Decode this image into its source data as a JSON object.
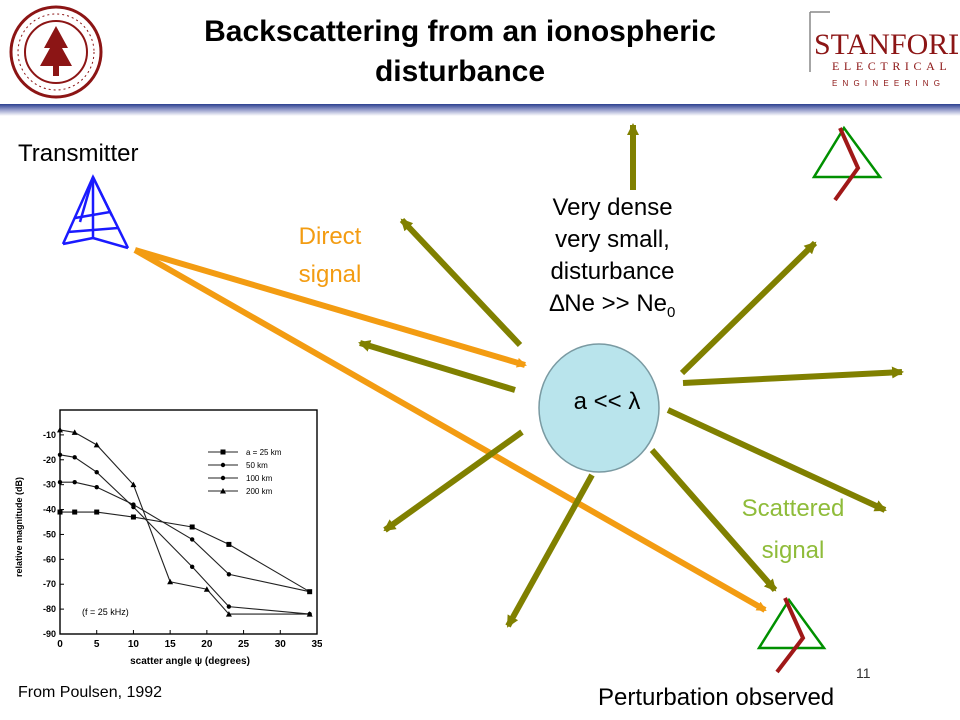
{
  "slide": {
    "title_line1": "Backscattering from an ionospheric",
    "title_line2": "disturbance",
    "page_number": "11"
  },
  "logos": {
    "seal_text": "LELAND STANFORD JUNIOR UNIVERSITY · ORGANIZED 1891",
    "wordmark_main": "STANFORD",
    "wordmark_sub1": "ELECTRICAL",
    "wordmark_sub2": "ENGINEERING"
  },
  "labels": {
    "transmitter": "Transmitter",
    "direct_signal_1": "Direct",
    "direct_signal_2": "signal",
    "center_1": "Very dense",
    "center_2": "very small,",
    "center_3": "disturbance",
    "center_4_main": "∆Ne >> Ne",
    "center_4_sub": "0",
    "blob": "a << λ",
    "scattered_1": "Scattered",
    "scattered_2": "signal",
    "perturbation": "Perturbation observed",
    "caption": "From Poulsen, 1992"
  },
  "colors": {
    "scatter_arrow": "#808000",
    "direct_signal": "#f39c12",
    "scattered_text": "#8fbc3a",
    "blob_fill": "#b9e4ec",
    "transmitter": "#1a1aff",
    "receiver_triangle": "#009000",
    "receiver_antenna": "#a01818",
    "title_bar": "#2b3f8f"
  },
  "inset_chart": {
    "ylabel": "relative magnitude (dB)",
    "xlabel": "scatter angle ψ (degrees)",
    "freq_note": "(f = 25 kHz)",
    "y_ticks": [
      "-10",
      "-20",
      "-30",
      "-40",
      "-50",
      "-60",
      "-70",
      "-80",
      "-90"
    ],
    "x_ticks": [
      "0",
      "5",
      "10",
      "15",
      "20",
      "25",
      "30",
      "35"
    ]
  },
  "chart_data": {
    "type": "line",
    "xlabel": "scatter angle ψ (degrees)",
    "ylabel": "relative magnitude (dB)",
    "xlim": [
      0,
      35
    ],
    "ylim": [
      -90,
      0
    ],
    "series": [
      {
        "name": "a = 25 km",
        "x": [
          0,
          2,
          5,
          10,
          18,
          23,
          34
        ],
        "y": [
          -41,
          -41,
          -41,
          -43,
          -47,
          -54,
          -73
        ]
      },
      {
        "name": "50 km",
        "x": [
          0,
          2,
          5,
          10,
          18,
          23,
          34
        ],
        "y": [
          -29,
          -29,
          -31,
          -38,
          -52,
          -66,
          -73
        ]
      },
      {
        "name": "100 km",
        "x": [
          0,
          2,
          5,
          10,
          18,
          23,
          34
        ],
        "y": [
          -18,
          -19,
          -25,
          -39,
          -63,
          -79,
          -82
        ]
      },
      {
        "name": "200 km",
        "x": [
          0,
          2,
          5,
          10,
          15,
          20,
          23,
          34
        ],
        "y": [
          -8,
          -9,
          -14,
          -30,
          -69,
          -72,
          -82,
          -82
        ]
      }
    ]
  }
}
